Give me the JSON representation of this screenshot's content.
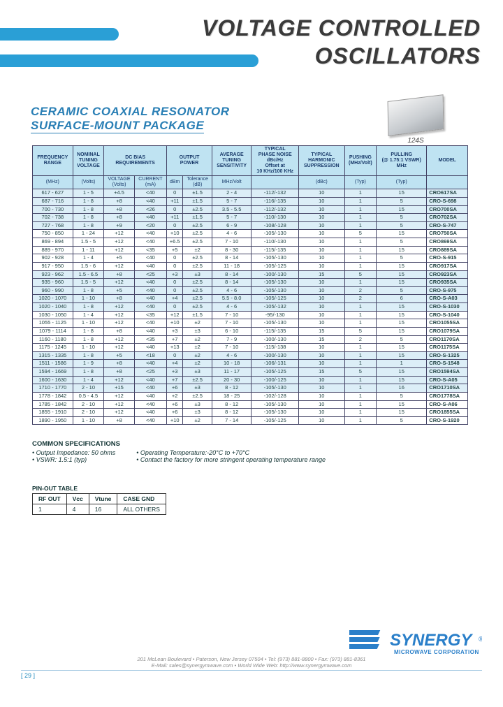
{
  "title": {
    "line1": "VOLTAGE CONTROLLED",
    "line2": "OSCILLATORS"
  },
  "subtitle": {
    "line1": "CERAMIC COAXIAL RESONATOR",
    "line2": "SURFACE-MOUNT PACKAGE"
  },
  "package_label": "124S",
  "colors": {
    "accent_blue": "#2a9fd6",
    "header_blue": "#bfe3f2",
    "band_alt": "#dceef7",
    "text_blue": "#1a3b6b"
  },
  "columns": {
    "row1": [
      {
        "label": "FREQUENCY\nRANGE",
        "colspan": 1
      },
      {
        "label": "NOMINAL\nTUNING\nVOLTAGE",
        "colspan": 1
      },
      {
        "label": "DC BIAS\nREQUIREMENTS",
        "colspan": 2
      },
      {
        "label": "OUTPUT\nPOWER",
        "colspan": 2
      },
      {
        "label": "AVERAGE\nTUNING\nSENSITIVITY",
        "colspan": 1
      },
      {
        "label": "TYPICAL\nPHASE NOISE\ndBc/Hz\nOffset at\n10 KHz/100 KHz",
        "colspan": 1
      },
      {
        "label": "TYPICAL\nHARMONIC\nSUPPRESSION",
        "colspan": 1
      },
      {
        "label": "PUSHING\n(MHz/Volt)",
        "colspan": 1
      },
      {
        "label": "PULLING\n(@ 1.75:1 VSWR)\nMHz",
        "colspan": 1
      },
      {
        "label": "MODEL",
        "colspan": 1
      }
    ],
    "row2": [
      {
        "label": "(MHz)"
      },
      {
        "label": "(Volts)"
      },
      {
        "label": "VOLTAGE\n(Volts)"
      },
      {
        "label": "CURRENT\n(mA)"
      },
      {
        "label": "dBm"
      },
      {
        "label": "Tolerance\n(dB)"
      },
      {
        "label": "MHz/Volt"
      },
      {
        "label": ""
      },
      {
        "label": "(dBc)"
      },
      {
        "label": "(Typ)"
      },
      {
        "label": "(Typ)"
      },
      {
        "label": ""
      }
    ]
  },
  "groups": [
    {
      "band": "a",
      "rows": [
        [
          "617 - 627",
          "1 - 5",
          "+4.5",
          "<40",
          "0",
          "±1.5",
          "2 - 4",
          "-112/-132",
          "10",
          "1",
          "15",
          "CRO617SA"
        ],
        [
          "687 - 716",
          "1 - 8",
          "+8",
          "<40",
          "+11",
          "±1.5",
          "5 - 7",
          "-116/-135",
          "10",
          "1",
          "5",
          "CRO-S-698"
        ],
        [
          "700 - 730",
          "1 - 8",
          "+8",
          "<26",
          "0",
          "±2.5",
          "3.5 - 5.5",
          "-112/-132",
          "10",
          "1",
          "15",
          "CRO700SA"
        ],
        [
          "702 - 738",
          "1 - 8",
          "+8",
          "<40",
          "+11",
          "±1.5",
          "5 - 7",
          "-110/-130",
          "10",
          "1",
          "5",
          "CRO702SA"
        ],
        [
          "727 - 768",
          "1 - 8",
          "+9",
          "<20",
          "0",
          "±2.5",
          "6 - 9",
          "-108/-128",
          "10",
          "1",
          "5",
          "CRO-S-747"
        ]
      ]
    },
    {
      "band": "b",
      "rows": [
        [
          "750 - 850",
          "1 - 24",
          "+12",
          "<40",
          "+10",
          "±2.5",
          "4 - 6",
          "-105/-130",
          "10",
          "5",
          "15",
          "CRO750SA"
        ],
        [
          "869 - 894",
          "1.5 - 5",
          "+12",
          "<40",
          "+6.5",
          "±2.5",
          "7 - 10",
          "-110/-130",
          "10",
          "1",
          "5",
          "CRO869SA"
        ],
        [
          "889 - 970",
          "1 - 11",
          "+12",
          "<35",
          "+5",
          "±2",
          "8 - 30",
          "-115/-135",
          "10",
          "1",
          "15",
          "CRO889SA"
        ],
        [
          "902 - 928",
          "1 - 4",
          "+5",
          "<40",
          "0",
          "±2.5",
          "8 - 14",
          "-105/-130",
          "10",
          "1",
          "5",
          "CRO-S-915"
        ],
        [
          "917 - 950",
          "1.5 - 6",
          "+12",
          "<40",
          "0",
          "±2.5",
          "11 - 18",
          "-105/-125",
          "10",
          "1",
          "15",
          "CRO917SA"
        ]
      ]
    },
    {
      "band": "a",
      "rows": [
        [
          "923 - 962",
          "1.5 - 6.5",
          "+8",
          "<25",
          "+3",
          "±3",
          "8 - 14",
          "-100/-130",
          "15",
          "5",
          "15",
          "CRO923SA"
        ],
        [
          "935 - 960",
          "1.5 - 5",
          "+12",
          "<40",
          "0",
          "±2.5",
          "8 - 14",
          "-105/-130",
          "10",
          "1",
          "15",
          "CRO935SA"
        ],
        [
          "960 - 990",
          "1 - 8",
          "+5",
          "<40",
          "0",
          "±2.5",
          "4 - 6",
          "-105/-130",
          "10",
          "2",
          "5",
          "CRO-S-975"
        ],
        [
          "1020 - 1070",
          "1 - 10",
          "+8",
          "<40",
          "+4",
          "±2.5",
          "5.5 - 8.0",
          "-105/-125",
          "10",
          "2",
          "6",
          "CRO-S-A03"
        ],
        [
          "1020 - 1040",
          "1 - 8",
          "+12",
          "<40",
          "0",
          "±2.5",
          "4 - 6",
          "-105/-132",
          "10",
          "1",
          "15",
          "CRO-S-1030"
        ]
      ]
    },
    {
      "band": "b",
      "rows": [
        [
          "1030 - 1050",
          "1 - 4",
          "+12",
          "<35",
          "+12",
          "±1.5",
          "7 - 10",
          "-95/-130",
          "10",
          "1",
          "15",
          "CRO-S-1040"
        ],
        [
          "1055 - 1125",
          "1 - 10",
          "+12",
          "<40",
          "+10",
          "±2",
          "7 - 10",
          "-105/-130",
          "10",
          "1",
          "15",
          "CRO1055SA"
        ],
        [
          "1079 - 1114",
          "1 - 8",
          "+8",
          "<40",
          "+3",
          "±3",
          "6 - 10",
          "-115/-135",
          "15",
          "5",
          "15",
          "CRO1079SA"
        ],
        [
          "1160 - 1180",
          "1 - 8",
          "+12",
          "<35",
          "+7",
          "±2",
          "7 - 9",
          "-100/-130",
          "15",
          "2",
          "5",
          "CRO1170SA"
        ],
        [
          "1175 - 1245",
          "1 - 10",
          "+12",
          "<40",
          "+13",
          "±2",
          "7 - 10",
          "-115/-138",
          "10",
          "1",
          "15",
          "CRO1175SA"
        ]
      ]
    },
    {
      "band": "a",
      "rows": [
        [
          "1315 - 1335",
          "1 - 8",
          "+5",
          "<18",
          "0",
          "±2",
          "4 - 6",
          "-100/-130",
          "10",
          "1",
          "15",
          "CRO-S-1325"
        ],
        [
          "1511 - 1586",
          "1 - 9",
          "+8",
          "<40",
          "+4",
          "±2",
          "10 - 18",
          "-106/-131",
          "10",
          "1",
          "1",
          "CRO-S-1548"
        ],
        [
          "1594 - 1669",
          "1 - 8",
          "+8",
          "<25",
          "+3",
          "±3",
          "11 - 17",
          "-105/-125",
          "15",
          "5",
          "15",
          "CRO1594SA"
        ],
        [
          "1600 - 1630",
          "1 - 4",
          "+12",
          "<40",
          "+7",
          "±2.5",
          "20 - 30",
          "-100/-125",
          "10",
          "1",
          "15",
          "CRO-S-A05"
        ],
        [
          "1710 - 1770",
          "2 - 10",
          "+15",
          "<40",
          "+6",
          "±3",
          "8 - 12",
          "-105/-130",
          "10",
          "1",
          "16",
          "CRO1710SA"
        ]
      ]
    },
    {
      "band": "b",
      "rows": [
        [
          "1778 - 1842",
          "0.5 - 4.5",
          "+12",
          "<40",
          "+2",
          "±2.5",
          "18 - 25",
          "-102/-128",
          "10",
          "1",
          "5",
          "CRO1778SA"
        ],
        [
          "1785 - 1842",
          "2 - 10",
          "+12",
          "<40",
          "+6",
          "±3",
          "8 - 12",
          "-105/-130",
          "10",
          "1",
          "15",
          "CRO-S-A06"
        ],
        [
          "1855 - 1910",
          "2 - 10",
          "+12",
          "<40",
          "+6",
          "±3",
          "8 - 12",
          "-105/-130",
          "10",
          "1",
          "15",
          "CRO1855SA"
        ],
        [
          "1890 - 1950",
          "1 - 10",
          "+8",
          "<40",
          "+10",
          "±2",
          "7 - 14",
          "-105/-125",
          "10",
          "1",
          "5",
          "CRO-S-1920"
        ]
      ]
    }
  ],
  "common": {
    "header": "COMMON SPECIFICATIONS",
    "left": [
      "Output Impedance: 50 ohms",
      "VSWR: 1.5:1 (typ)"
    ],
    "right": [
      "Operating Temperature:-20°C to +70°C",
      "Contact the factory for more stringent operating temperature range"
    ]
  },
  "pinout": {
    "label": "PIN-OUT TABLE",
    "headers": [
      "RF OUT",
      "Vcc",
      "Vtune",
      "CASE GND"
    ],
    "row": [
      "1",
      "4",
      "16",
      "ALL OTHERS"
    ]
  },
  "footer": {
    "logo_name": "SYNERGY",
    "logo_sub": "MICROWAVE CORPORATION",
    "addr1": "201 McLean Boulevard • Paterson, New Jersey 07504 • Tel: (973) 881-8800 • Fax: (973) 881-8361",
    "addr2": "E-Mail: sales@synergymwave.com • World Wide Web: http://www.synergymwave.com",
    "page": "[ 29 ]"
  }
}
